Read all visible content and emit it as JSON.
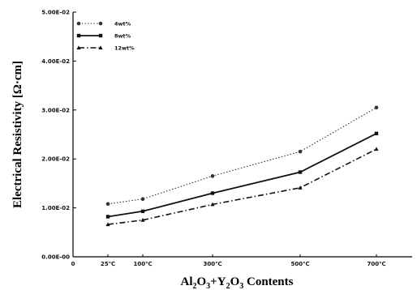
{
  "chart_data": {
    "type": "line",
    "xlabel": "Al2O3+Y2O3 Contents",
    "xlabel_parts": {
      "a": "Al",
      "a_sub": "2",
      "b": "O",
      "b_sub": "3",
      "plus": "+Y",
      "c_sub": "2",
      "d": "O",
      "d_sub": "3",
      "tail": " Contents"
    },
    "ylabel": "Electrical Resistivity [Ω·cm]",
    "x_axis_ticks": [
      {
        "label": "0",
        "value": 0
      },
      {
        "label": "25℃",
        "value": 25
      },
      {
        "label": "100℃",
        "value": 100
      },
      {
        "label": "300℃",
        "value": 300
      },
      {
        "label": "500℃",
        "value": 500
      },
      {
        "label": "700℃",
        "value": 700
      }
    ],
    "y_axis_ticks": [
      {
        "label": "0.00E-00",
        "value": 0.0
      },
      {
        "label": "1.00E-02",
        "value": 0.01
      },
      {
        "label": "2.00E-02",
        "value": 0.02
      },
      {
        "label": "3.00E-02",
        "value": 0.03
      },
      {
        "label": "4.00E-02",
        "value": 0.04
      },
      {
        "label": "5.00E-02",
        "value": 0.05
      }
    ],
    "ylim": [
      0,
      0.05
    ],
    "grid": false,
    "legend_position": "top-left",
    "categories": [
      "25℃",
      "100℃",
      "300℃",
      "500℃",
      "700℃"
    ],
    "series": [
      {
        "name": "4wt%",
        "style": "dotted",
        "marker": "circle",
        "color": "#333333",
        "values": [
          0.0108,
          0.0118,
          0.0165,
          0.0215,
          0.0305
        ]
      },
      {
        "name": "8wt%",
        "style": "solid",
        "marker": "square",
        "color": "#111111",
        "values": [
          0.0082,
          0.0093,
          0.013,
          0.0173,
          0.0252
        ]
      },
      {
        "name": "12wt%",
        "style": "dashdot",
        "marker": "triangle",
        "color": "#111111",
        "values": [
          0.0066,
          0.0075,
          0.0107,
          0.0141,
          0.022
        ]
      }
    ]
  }
}
